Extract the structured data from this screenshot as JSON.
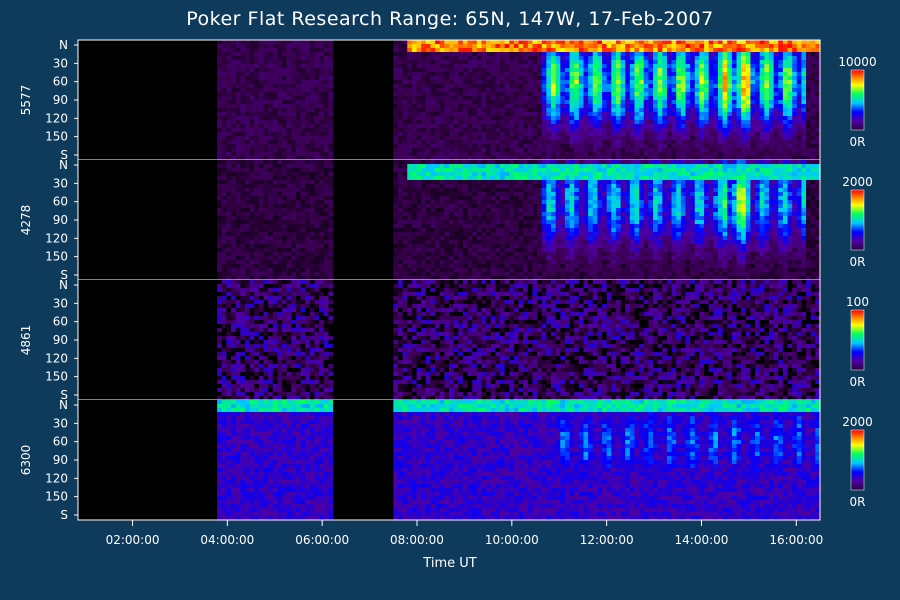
{
  "title": "Poker Flat Research Range: 65N, 147W, 17-Feb-2007",
  "chart_data": {
    "type": "heatmap",
    "title": "Poker Flat Research Range: 65N, 147W, 17-Feb-2007",
    "xlabel": "Time UT",
    "x_ticks": [
      "02:00:00",
      "04:00:00",
      "06:00:00",
      "08:00:00",
      "10:00:00",
      "12:00:00",
      "14:00:00",
      "16:00:00"
    ],
    "x_range_hours": [
      0.85,
      16.5
    ],
    "y_ticks": [
      "N",
      "30",
      "60",
      "90",
      "120",
      "150",
      "S"
    ],
    "y_range_deg": [
      0,
      180
    ],
    "colormap": [
      "#000000",
      "#3a0050",
      "#5000a0",
      "#0000ff",
      "#00c8ff",
      "#00ff60",
      "#ffff00",
      "#ff8000",
      "#ff0000"
    ],
    "panels": [
      {
        "wavelength": "5577",
        "cbar_max": "10000",
        "cbar_min": "0R",
        "base": 0.12,
        "noise": 0.05,
        "bright_band": {
          "pos": 0.05,
          "start_h": 7.8,
          "value": 0.95
        },
        "data_gaps_h": [
          [
            0.85,
            3.75
          ],
          [
            6.2,
            7.5
          ]
        ],
        "bright_regions": [
          {
            "start_h": 10.6,
            "end_h": 16.2,
            "value": 0.7
          },
          {
            "start_h": 14.4,
            "end_h": 15.0,
            "value": 0.85
          }
        ]
      },
      {
        "wavelength": "4278",
        "cbar_max": "2000",
        "cbar_min": "0R",
        "base": 0.1,
        "noise": 0.05,
        "bright_band": {
          "pos": 0.1,
          "start_h": 7.8,
          "value": 0.6
        },
        "data_gaps_h": [
          [
            0.85,
            3.75
          ],
          [
            6.2,
            7.5
          ]
        ],
        "bright_regions": [
          {
            "start_h": 10.6,
            "end_h": 16.2,
            "value": 0.55
          },
          {
            "start_h": 14.4,
            "end_h": 15.0,
            "value": 0.75
          }
        ]
      },
      {
        "wavelength": "4861",
        "cbar_max": "100",
        "cbar_min": "0R",
        "base": 0.15,
        "noise": 0.18,
        "bright_band": {
          "pos": 0.0,
          "start_h": 0.0,
          "value": 0.0
        },
        "data_gaps_h": [
          [
            0.85,
            3.75
          ],
          [
            6.2,
            7.5
          ]
        ],
        "bright_regions": []
      },
      {
        "wavelength": "6300",
        "cbar_max": "2000",
        "cbar_min": "0R",
        "base": 0.3,
        "noise": 0.06,
        "bright_band": {
          "pos": 0.05,
          "start_h": 3.75,
          "value": 0.6
        },
        "data_gaps_h": [
          [
            0.85,
            3.75
          ],
          [
            6.2,
            7.5
          ]
        ],
        "bright_regions": [
          {
            "start_h": 11.0,
            "end_h": 16.5,
            "value": 0.45
          }
        ]
      }
    ]
  }
}
